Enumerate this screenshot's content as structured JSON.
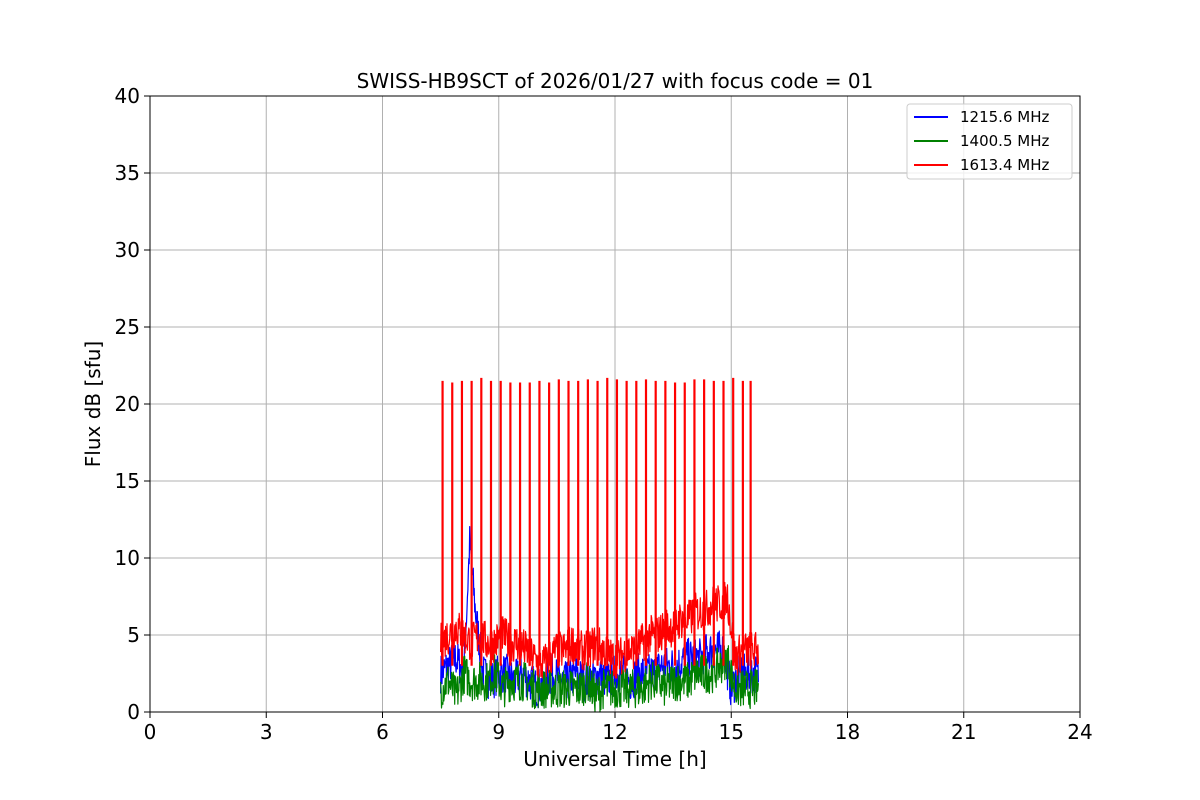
{
  "chart_data": {
    "type": "line",
    "title": "SWISS-HB9SCT of 2026/01/27 with focus code = 01",
    "xlabel": "Universal Time [h]",
    "ylabel": "Flux dB [sfu]",
    "xlim": [
      0,
      24
    ],
    "ylim": [
      0,
      40
    ],
    "xticks": [
      0,
      3,
      6,
      9,
      12,
      15,
      18,
      21,
      24
    ],
    "yticks": [
      0,
      5,
      10,
      15,
      20,
      25,
      30,
      35,
      40
    ],
    "grid": true,
    "legend_position": "top-right",
    "series": [
      {
        "name": "1215.6 MHz",
        "color": "#0000ff",
        "x": [
          7.5,
          7.7,
          7.9,
          8.1,
          8.25,
          8.4,
          8.6,
          8.8,
          9.0,
          9.2,
          9.4,
          9.6,
          9.8,
          10.0,
          10.2,
          10.4,
          10.6,
          10.8,
          11.0,
          11.2,
          11.4,
          11.6,
          11.8,
          12.0,
          12.2,
          12.4,
          12.6,
          12.8,
          13.0,
          13.2,
          13.4,
          13.6,
          13.8,
          14.0,
          14.2,
          14.4,
          14.6,
          14.8,
          15.0,
          15.2,
          15.4,
          15.7
        ],
        "values": [
          2.5,
          3.0,
          3.5,
          2.5,
          11.0,
          6.5,
          2.5,
          2.0,
          2.5,
          2.5,
          2.0,
          2.5,
          2.0,
          1.5,
          2.0,
          2.5,
          2.0,
          2.0,
          2.5,
          2.0,
          2.0,
          2.5,
          2.0,
          2.5,
          2.5,
          2.0,
          2.5,
          2.5,
          2.5,
          3.0,
          3.0,
          3.0,
          3.5,
          3.5,
          3.5,
          4.0,
          4.0,
          4.0,
          1.5,
          2.5,
          2.5,
          2.5
        ]
      },
      {
        "name": "1400.5 MHz",
        "color": "#008000",
        "x": [
          7.5,
          7.7,
          7.9,
          8.1,
          8.3,
          8.5,
          8.7,
          8.9,
          9.1,
          9.3,
          9.5,
          9.7,
          9.9,
          10.1,
          10.3,
          10.5,
          10.7,
          10.9,
          11.1,
          11.3,
          11.5,
          11.7,
          11.9,
          12.1,
          12.3,
          12.5,
          12.7,
          12.9,
          13.1,
          13.3,
          13.5,
          13.7,
          13.9,
          14.1,
          14.3,
          14.5,
          14.7,
          14.9,
          15.1,
          15.3,
          15.5,
          15.7
        ],
        "values": [
          1.5,
          2.0,
          1.0,
          2.5,
          2.0,
          2.0,
          2.0,
          2.5,
          1.5,
          2.0,
          2.0,
          2.0,
          1.5,
          1.5,
          1.5,
          1.5,
          1.5,
          1.5,
          1.5,
          2.0,
          1.0,
          1.5,
          1.5,
          1.5,
          1.5,
          1.5,
          1.5,
          2.0,
          2.0,
          1.5,
          2.0,
          2.0,
          2.0,
          2.5,
          2.5,
          2.5,
          3.0,
          3.5,
          1.5,
          1.5,
          1.5,
          1.5
        ]
      },
      {
        "name": "1613.4 MHz",
        "color": "#ff0000",
        "x": [
          7.5,
          7.7,
          7.9,
          8.1,
          8.3,
          8.5,
          8.7,
          8.9,
          9.1,
          9.3,
          9.5,
          9.7,
          9.9,
          10.1,
          10.3,
          10.5,
          10.7,
          10.9,
          11.1,
          11.3,
          11.5,
          11.7,
          11.9,
          12.1,
          12.3,
          12.5,
          12.7,
          12.9,
          13.1,
          13.3,
          13.5,
          13.7,
          13.9,
          14.1,
          14.3,
          14.5,
          14.7,
          14.9,
          15.1,
          15.3,
          15.5,
          15.7
        ],
        "values": [
          4.5,
          5.0,
          5.5,
          5.0,
          4.5,
          5.0,
          4.5,
          4.5,
          5.0,
          4.5,
          4.5,
          4.0,
          3.5,
          3.0,
          3.5,
          4.0,
          4.0,
          4.5,
          4.0,
          4.0,
          4.5,
          4.0,
          3.5,
          3.5,
          4.0,
          4.0,
          4.5,
          5.0,
          5.0,
          5.5,
          5.5,
          6.0,
          6.0,
          6.5,
          6.5,
          7.0,
          7.0,
          7.5,
          3.5,
          4.0,
          4.0,
          4.0
        ]
      }
    ],
    "spikes": {
      "series": "1613.4 MHz",
      "description_values_h": [
        7.55,
        7.8,
        8.05,
        8.3,
        8.55,
        8.8,
        9.05,
        9.3,
        9.55,
        9.8,
        10.05,
        10.3,
        10.55,
        10.8,
        11.05,
        11.3,
        11.55,
        11.8,
        12.05,
        12.3,
        12.55,
        12.8,
        13.05,
        13.3,
        13.55,
        13.8,
        14.05,
        14.3,
        14.55,
        14.8,
        15.05,
        15.3,
        15.5
      ],
      "peak_values": [
        21.5,
        21.4,
        21.5,
        21.5,
        21.7,
        21.5,
        21.5,
        21.4,
        21.4,
        21.4,
        21.5,
        21.4,
        21.6,
        21.5,
        21.5,
        21.6,
        21.5,
        21.7,
        21.6,
        21.5,
        21.5,
        21.6,
        21.5,
        21.5,
        21.4,
        21.4,
        21.6,
        21.6,
        21.5,
        21.5,
        21.7,
        21.5,
        21.5
      ]
    }
  }
}
